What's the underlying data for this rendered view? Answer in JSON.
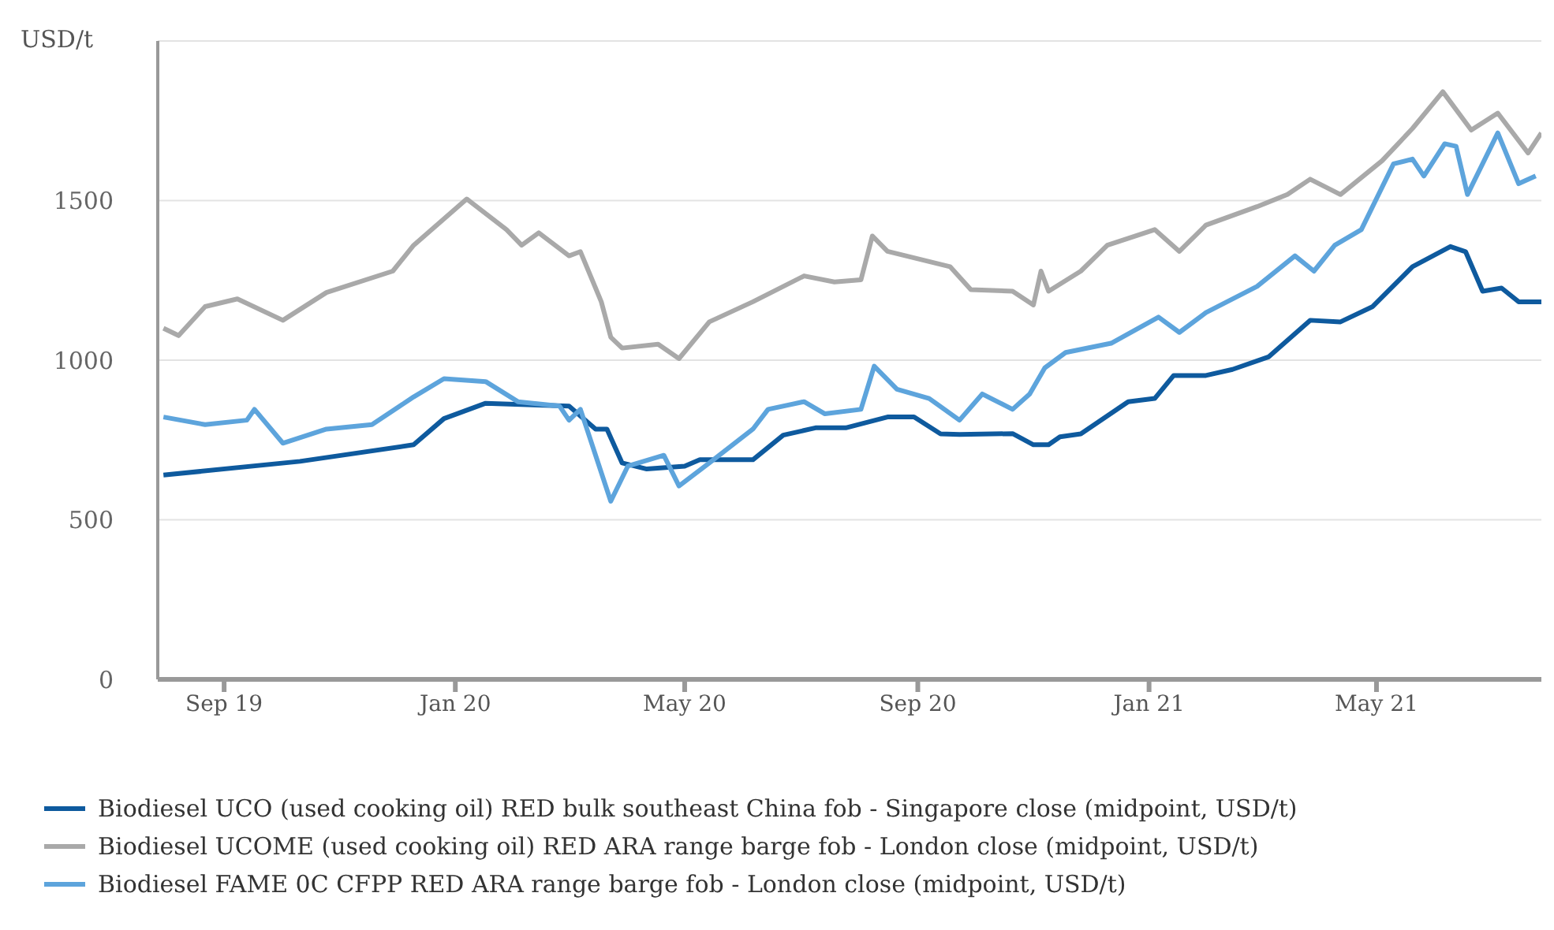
{
  "chart_data": {
    "type": "line",
    "ylabel": "USD/t",
    "xlim": [
      "2019-07-28",
      "2021-07-27"
    ],
    "ylim": [
      0,
      2000
    ],
    "yticks": [
      0,
      500,
      1000,
      1500,
      {
        "value": 2000,
        "label": null
      }
    ],
    "xticks": [
      {
        "value": "2019-09-01",
        "label": "Sep 19"
      },
      {
        "value": "2020-01-01",
        "label": "Jan 20"
      },
      {
        "value": "2020-05-01",
        "label": "May 20"
      },
      {
        "value": "2020-09-01",
        "label": "Sep 20"
      },
      {
        "value": "2021-01-01",
        "label": "Jan 21"
      },
      {
        "value": "2021-05-01",
        "label": "May 21"
      }
    ],
    "grid": "y",
    "legend": "bottom",
    "marker": "none",
    "line_style": "solid",
    "series": [
      {
        "name": "Biodiesel UCO (used cooking oil) RED bulk southeast China fob - Singapore close (midpoint, USD/t)",
        "color": "#0e5a9e",
        "x": [
          "2019-07-31",
          "2019-10-11",
          "2019-12-10",
          "2019-12-26",
          "2020-01-17",
          "2020-03-01",
          "2020-03-15",
          "2020-03-21",
          "2020-03-29",
          "2020-04-11",
          "2020-05-01",
          "2020-05-09",
          "2020-06-06",
          "2020-06-22",
          "2020-07-09",
          "2020-07-25",
          "2020-08-16",
          "2020-08-30",
          "2020-09-13",
          "2020-09-23",
          "2020-10-21",
          "2020-11-01",
          "2020-11-09",
          "2020-11-15",
          "2020-11-26",
          "2020-12-21",
          "2021-01-04",
          "2021-01-14",
          "2021-01-31",
          "2021-02-14",
          "2021-03-05",
          "2021-03-27",
          "2021-04-12",
          "2021-04-29",
          "2021-05-20",
          "2021-06-09",
          "2021-06-17",
          "2021-06-26",
          "2021-07-06",
          "2021-07-15",
          "2021-07-27"
        ],
        "values": [
          640,
          683,
          735,
          817,
          865,
          856,
          784,
          784,
          678,
          659,
          668,
          688,
          688,
          765,
          788,
          788,
          822,
          822,
          769,
          767,
          770,
          735,
          735,
          760,
          769,
          870,
          880,
          952,
          952,
          971,
          1010,
          1125,
          1120,
          1168,
          1293,
          1356,
          1340,
          1216,
          1226,
          1183,
          1183
        ]
      },
      {
        "name": "Biodiesel UCOME (used cooking oil) RED ARA range barge fob - London close (midpoint, USD/t)",
        "color": "#a9a9a9",
        "x": [
          "2019-07-31",
          "2019-08-08",
          "2019-08-22",
          "2019-09-08",
          "2019-10-02",
          "2019-10-25",
          "2019-11-29",
          "2019-12-10",
          "2020-01-07",
          "2020-01-28",
          "2020-02-05",
          "2020-02-14",
          "2020-03-01",
          "2020-03-07",
          "2020-03-18",
          "2020-03-23",
          "2020-03-29",
          "2020-04-17",
          "2020-04-28",
          "2020-05-14",
          "2020-06-06",
          "2020-07-03",
          "2020-07-19",
          "2020-08-02",
          "2020-08-08",
          "2020-08-16",
          "2020-09-18",
          "2020-09-29",
          "2020-10-21",
          "2020-11-01",
          "2020-11-05",
          "2020-11-09",
          "2020-11-26",
          "2020-12-10",
          "2021-01-04",
          "2021-01-17",
          "2021-01-31",
          "2021-02-27",
          "2021-03-15",
          "2021-03-27",
          "2021-04-12",
          "2021-05-04",
          "2021-05-20",
          "2021-06-05",
          "2021-06-20",
          "2021-07-04",
          "2021-07-20",
          "2021-07-27"
        ],
        "values": [
          1100,
          1077,
          1168,
          1192,
          1125,
          1212,
          1279,
          1360,
          1505,
          1409,
          1360,
          1399,
          1327,
          1340,
          1183,
          1072,
          1038,
          1050,
          1005,
          1120,
          1183,
          1264,
          1245,
          1252,
          1389,
          1341,
          1293,
          1221,
          1216,
          1173,
          1279,
          1216,
          1279,
          1360,
          1409,
          1341,
          1423,
          1481,
          1519,
          1567,
          1519,
          1625,
          1726,
          1841,
          1721,
          1774,
          1649,
          1712
        ]
      },
      {
        "name": "Biodiesel FAME 0C CFPP RED ARA range barge fob - London close (midpoint, USD/t)",
        "color": "#5da4dc",
        "x": [
          "2019-07-31",
          "2019-08-22",
          "2019-09-13",
          "2019-09-17",
          "2019-10-02",
          "2019-10-25",
          "2019-11-18",
          "2019-12-10",
          "2019-12-26",
          "2020-01-17",
          "2020-02-03",
          "2020-02-25",
          "2020-03-01",
          "2020-03-07",
          "2020-03-23",
          "2020-04-01",
          "2020-04-20",
          "2020-04-28",
          "2020-05-14",
          "2020-06-06",
          "2020-06-14",
          "2020-07-03",
          "2020-07-14",
          "2020-08-02",
          "2020-08-09",
          "2020-08-21",
          "2020-09-07",
          "2020-09-23",
          "2020-10-05",
          "2020-10-21",
          "2020-10-30",
          "2020-11-07",
          "2020-11-18",
          "2020-12-12",
          "2021-01-06",
          "2021-01-17",
          "2021-01-31",
          "2021-02-27",
          "2021-03-19",
          "2021-03-29",
          "2021-04-09",
          "2021-04-23",
          "2021-05-10",
          "2021-05-20",
          "2021-05-26",
          "2021-06-06",
          "2021-06-12",
          "2021-06-18",
          "2021-07-04",
          "2021-07-15",
          "2021-07-24"
        ],
        "values": [
          822,
          798,
          812,
          846,
          740,
          784,
          798,
          885,
          942,
          933,
          870,
          856,
          812,
          846,
          558,
          668,
          702,
          606,
          678,
          784,
          846,
          870,
          832,
          846,
          981,
          909,
          880,
          812,
          894,
          846,
          894,
          976,
          1024,
          1053,
          1135,
          1087,
          1149,
          1231,
          1327,
          1279,
          1360,
          1409,
          1615,
          1630,
          1577,
          1678,
          1670,
          1519,
          1712,
          1553,
          1577
        ]
      }
    ]
  }
}
